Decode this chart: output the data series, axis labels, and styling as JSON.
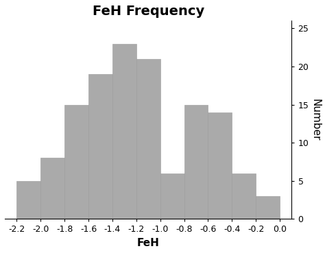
{
  "title": "FeH Frequency",
  "xlabel": "FeH",
  "ylabel": "Number",
  "bar_left_edges": [
    -2.2,
    -2.0,
    -1.8,
    -1.6,
    -1.4,
    -1.2,
    -1.0,
    -0.8,
    -0.6,
    -0.4,
    -0.2
  ],
  "bar_heights": [
    5,
    8,
    15,
    19,
    23,
    21,
    6,
    15,
    14,
    6,
    3
  ],
  "bar_width": 0.2,
  "bar_color": "#aaaaaa",
  "bar_edgecolor": "#999999",
  "xlim": [
    -2.3,
    0.1
  ],
  "ylim": [
    0,
    26
  ],
  "xticks": [
    -2.2,
    -2.0,
    -1.8,
    -1.6,
    -1.4,
    -1.2,
    -1.0,
    -0.8,
    -0.6,
    -0.4,
    -0.2,
    0.0
  ],
  "yticks": [
    0,
    5,
    10,
    15,
    20,
    25
  ],
  "title_fontsize": 14,
  "label_fontsize": 11,
  "tick_fontsize": 9,
  "background_color": "#ffffff"
}
